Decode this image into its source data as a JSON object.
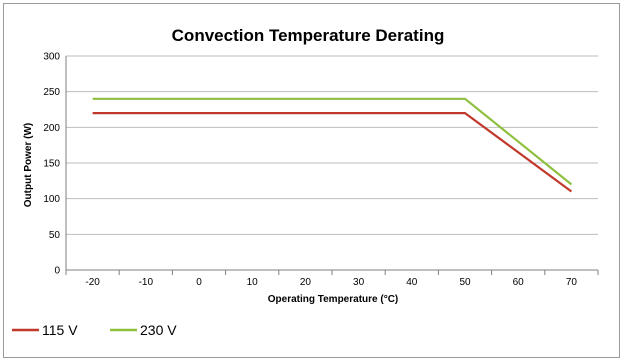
{
  "chart_data": {
    "type": "line",
    "title": "Convection Temperature Derating",
    "xlabel": "Operating Temperature (°C)",
    "ylabel": "Output Power (W)",
    "x_ticks": [
      "-20",
      "-10",
      "0",
      "10",
      "20",
      "30",
      "40",
      "50",
      "60",
      "70"
    ],
    "y_ticks": [
      "0",
      "50",
      "100",
      "150",
      "200",
      "250",
      "300"
    ],
    "xlim": [
      -25,
      75
    ],
    "ylim": [
      0,
      300
    ],
    "grid": "horizontal",
    "legend_position": "bottom-left",
    "series": [
      {
        "name": "115 V",
        "color": "#c0392b",
        "x": [
          -20,
          50,
          70
        ],
        "y": [
          220,
          220,
          110
        ]
      },
      {
        "name": "230 V",
        "color": "#8fbf3f",
        "x": [
          -20,
          50,
          70
        ],
        "y": [
          240,
          240,
          120
        ]
      }
    ]
  }
}
